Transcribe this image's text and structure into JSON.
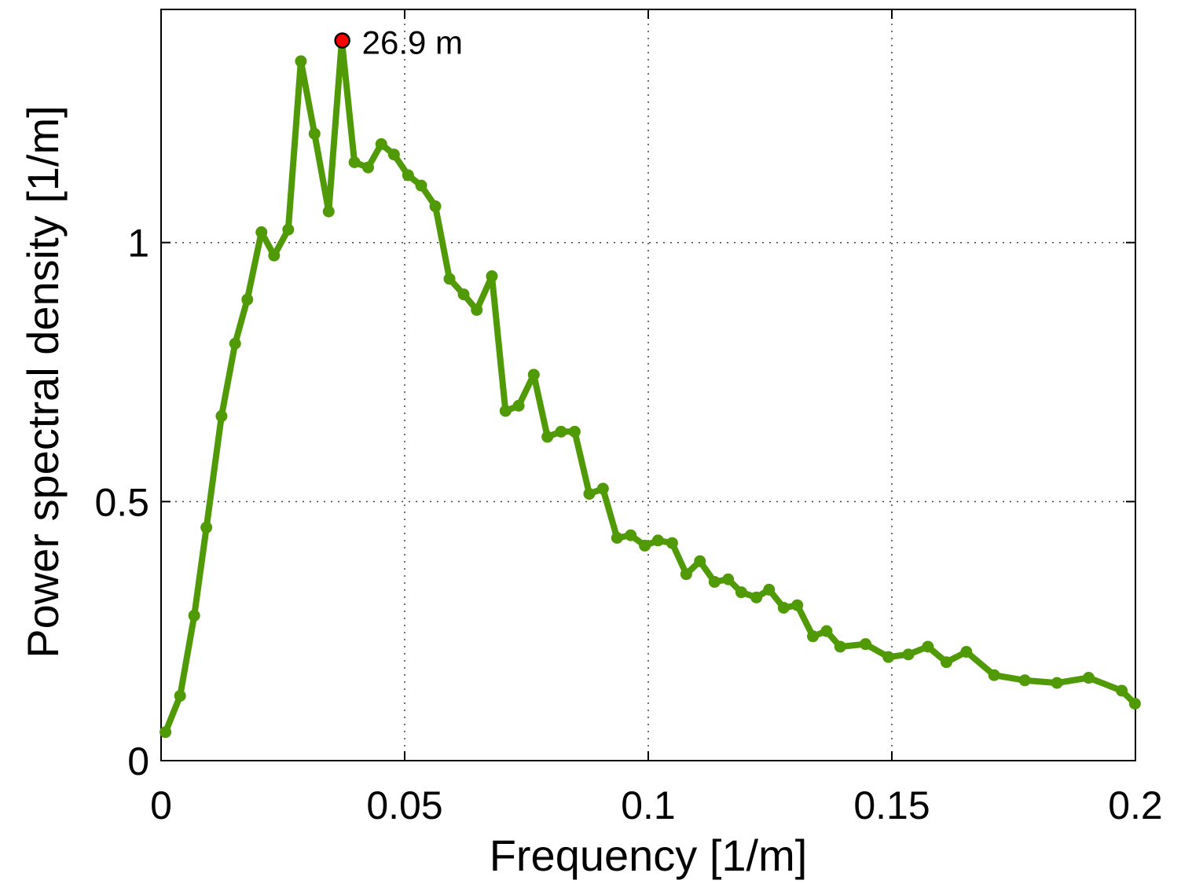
{
  "chart_data": {
    "type": "line",
    "title": "",
    "xlabel": "Frequency [1/m]",
    "ylabel": "Power spectral density [1/m]",
    "xlim": [
      0,
      0.2
    ],
    "ylim": [
      0,
      1.45
    ],
    "grid": true,
    "x_ticks": [
      0,
      0.05,
      0.1,
      0.15,
      0.2
    ],
    "x_tick_labels": [
      "0",
      "0.05",
      "0.1",
      "0.15",
      "0.2"
    ],
    "y_ticks": [
      0,
      0.5,
      1
    ],
    "y_tick_labels": [
      "0",
      "0.5",
      "1"
    ],
    "line_color": "#4f9a06",
    "marker_color": "#4f9a06",
    "highlight_color": "#ff0000",
    "series": [
      {
        "x": [
          0.0009,
          0.0039,
          0.0068,
          0.0093,
          0.0124,
          0.0152,
          0.0177,
          0.0206,
          0.0232,
          0.0261,
          0.0287,
          0.0315,
          0.0344,
          0.0371,
          0.0397,
          0.0425,
          0.0452,
          0.0478,
          0.0507,
          0.0534,
          0.0563,
          0.0592,
          0.0621,
          0.0648,
          0.0679,
          0.0707,
          0.0734,
          0.0765,
          0.0793,
          0.0821,
          0.0849,
          0.0879,
          0.0907,
          0.0936,
          0.0964,
          0.0993,
          0.102,
          0.1049,
          0.1078,
          0.1106,
          0.1136,
          0.1164,
          0.1191,
          0.1222,
          0.1248,
          0.1278,
          0.1306,
          0.1338,
          0.1366,
          0.1394,
          0.1446,
          0.1493,
          0.1534,
          0.1574,
          0.1612,
          0.1653,
          0.171,
          0.1773,
          0.1839,
          0.1904,
          0.1972,
          0.1999
        ],
        "y": [
          0.055,
          0.125,
          0.28,
          0.45,
          0.665,
          0.805,
          0.89,
          1.02,
          0.975,
          1.025,
          1.35,
          1.21,
          1.06,
          1.39,
          1.155,
          1.145,
          1.19,
          1.17,
          1.13,
          1.11,
          1.07,
          0.93,
          0.9,
          0.87,
          0.935,
          0.675,
          0.685,
          0.745,
          0.625,
          0.635,
          0.635,
          0.515,
          0.525,
          0.43,
          0.435,
          0.415,
          0.425,
          0.42,
          0.36,
          0.385,
          0.345,
          0.35,
          0.325,
          0.315,
          0.33,
          0.295,
          0.3,
          0.24,
          0.25,
          0.22,
          0.225,
          0.2,
          0.205,
          0.22,
          0.19,
          0.21,
          0.165,
          0.155,
          0.15,
          0.16,
          0.135,
          0.11
        ]
      }
    ],
    "annotation": {
      "x": 0.0372,
      "y": 1.39,
      "label": "26.9 m"
    }
  }
}
